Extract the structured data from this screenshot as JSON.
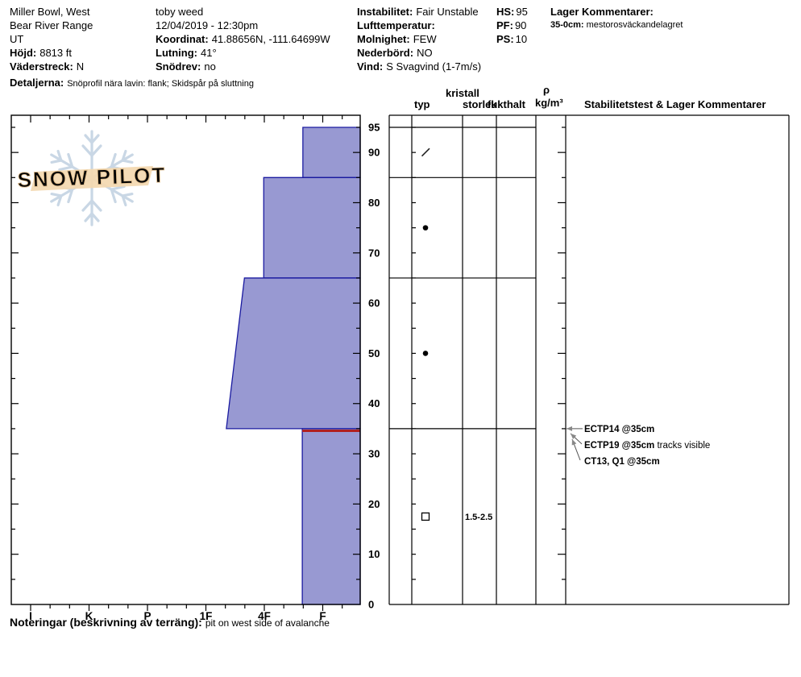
{
  "header": {
    "location": "Miller Bowl, West",
    "range": "Bear River Range",
    "state": "UT",
    "elevation_label": "Höjd:",
    "elevation": "8813 ft",
    "aspect_label": "Väderstreck:",
    "aspect": "N",
    "observer": "toby weed",
    "datetime": "12/04/2019 - 12:30pm",
    "coordinates_label": "Koordinat:",
    "coordinates": "41.88656N, -111.64699W",
    "slope_label": "Lutning:",
    "slope": "41°",
    "drift_label": "Snödrev:",
    "drift": "no",
    "stability_label": "Instabilitet:",
    "stability": "Fair Unstable",
    "airtemp_label": "Lufttemperatur:",
    "airtemp": "",
    "sky_label": "Molnighet:",
    "sky": "FEW",
    "precip_label": "Nederbörd:",
    "precip": "NO",
    "wind_label": "Vind:",
    "wind": "S Svagvind (1-7m/s)",
    "hs_label": "HS:",
    "hs": "95",
    "pf_label": "PF:",
    "pf": "90",
    "ps_label": "PS:",
    "ps": "10",
    "layer_comments_label": "Lager Kommentarer:",
    "layer_comment_range": "35-0cm:",
    "layer_comment": "mestorosväckandelagret",
    "details_label": "Detaljerna:",
    "details": "Snöprofil nära lavin: flank; Skidspår på sluttning"
  },
  "logo": {
    "text": "SNOW PILOT"
  },
  "footer": {
    "notes_label": "Noteringar (beskrivning av terräng):",
    "notes": "pit on west side of avalanche"
  },
  "chart_data": {
    "type": "area",
    "profile": "snowpit-hand-hardness-profile",
    "depth_unit": "cm",
    "ylim": [
      0,
      95
    ],
    "y_tick_labels": [
      95,
      90,
      80,
      70,
      60,
      50,
      40,
      30,
      20,
      10,
      0
    ],
    "y_tick_step": 5,
    "hardness_categories": [
      "I",
      "K",
      "P",
      "1F",
      "4F",
      "F"
    ],
    "x_minor_ticks_per_major": 3,
    "columns": {
      "typ": "typ",
      "kristall_line1": "kristall",
      "kristall_line2": "storlek",
      "fukthalt": "fukthalt",
      "density_line1": "ρ",
      "density_line2": "kg/m³",
      "stability": "Stabilitetstest & Lager Kommentarer"
    },
    "layers": [
      {
        "top_cm": 95,
        "bottom_cm": 85,
        "hardness_index_top": 4.66,
        "hardness_index_bottom": 4.66,
        "hardness_label": "4F-F",
        "grain_symbol": "/",
        "grain_type": "decomposing-fragments",
        "grain_size": ""
      },
      {
        "top_cm": 85,
        "bottom_cm": 65,
        "hardness_index_top": 3.99,
        "hardness_index_bottom": 3.99,
        "hardness_label": "4F",
        "grain_symbol": "●",
        "grain_type": "rounded-grains",
        "grain_size": ""
      },
      {
        "top_cm": 65,
        "bottom_cm": 35,
        "hardness_index_top": 3.66,
        "hardness_index_bottom": 3.35,
        "hardness_label": "4F to 1F-4F",
        "grain_symbol": "●",
        "grain_type": "rounded-grains",
        "grain_size": ""
      },
      {
        "top_cm": 35,
        "bottom_cm": 0,
        "hardness_index_top": 4.65,
        "hardness_index_bottom": 4.65,
        "hardness_label": "4F-F",
        "grain_symbol": "□",
        "grain_type": "faceted-crystals",
        "grain_size": "1.5-2.5",
        "flagged_red": true
      }
    ],
    "stability_tests": [
      {
        "bold": "ECTP14 @35cm",
        "normal": "",
        "depth_cm": 35
      },
      {
        "bold": "ECTP19 @35cm",
        "normal": " tracks visible",
        "depth_cm": 35
      },
      {
        "bold": "CT13, Q1 @35cm",
        "normal": "",
        "depth_cm": 35
      }
    ],
    "colors": {
      "layer_fill": "#9899d2",
      "layer_border": "#1a1aa0",
      "flag_red": "#b02020",
      "axis": "#000000",
      "arrow_gray": "#888888",
      "logo_band": "#f3d8b0",
      "logo_text": "#fdfaf4",
      "logo_text_outline": "#dcba8b",
      "logo_snowflake": "#c9d7e5"
    }
  }
}
